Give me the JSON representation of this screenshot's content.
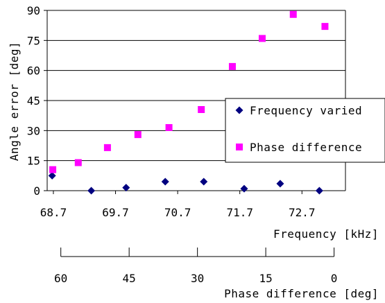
{
  "chart_data": {
    "type": "scatter",
    "xlabel": "Frequency [kHz]",
    "ylabel": "Angle error [deg]",
    "x2label": "Phase difference [deg]",
    "xlim": [
      68.6,
      73.4
    ],
    "ylim": [
      0,
      90
    ],
    "x_ticks": [
      "68.7",
      "69.7",
      "70.7",
      "71.7",
      "72.7"
    ],
    "x_tick_values": [
      68.7,
      69.7,
      70.7,
      71.7,
      72.7
    ],
    "y_ticks": [
      "0",
      "15",
      "30",
      "45",
      "60",
      "75",
      "90"
    ],
    "y_tick_values": [
      0,
      15,
      30,
      45,
      60,
      75,
      90
    ],
    "x2_ticks": [
      "60",
      "45",
      "30",
      "15",
      "0"
    ],
    "x2_tick_values": [
      60,
      45,
      30,
      15,
      0
    ],
    "x2_lim": [
      63,
      -2.5
    ],
    "horizontal_grid": true,
    "legend_position": "right",
    "series": [
      {
        "name": "Frequency varied",
        "marker": "diamond",
        "color": "#000080",
        "x": [
          68.68,
          69.31,
          69.87,
          70.5,
          71.12,
          71.77,
          72.35,
          72.98
        ],
        "y": [
          7.5,
          0,
          1.5,
          4.5,
          4.5,
          1,
          3.5,
          0
        ]
      },
      {
        "name": "Phase difference",
        "marker": "square",
        "color": "#ff00ff",
        "x": [
          68.69,
          69.1,
          69.57,
          70.06,
          70.56,
          71.08,
          71.58,
          72.06,
          72.56,
          73.07
        ],
        "y": [
          10.5,
          14,
          21.5,
          28,
          31.5,
          40.5,
          62,
          76,
          88,
          82
        ]
      }
    ]
  }
}
